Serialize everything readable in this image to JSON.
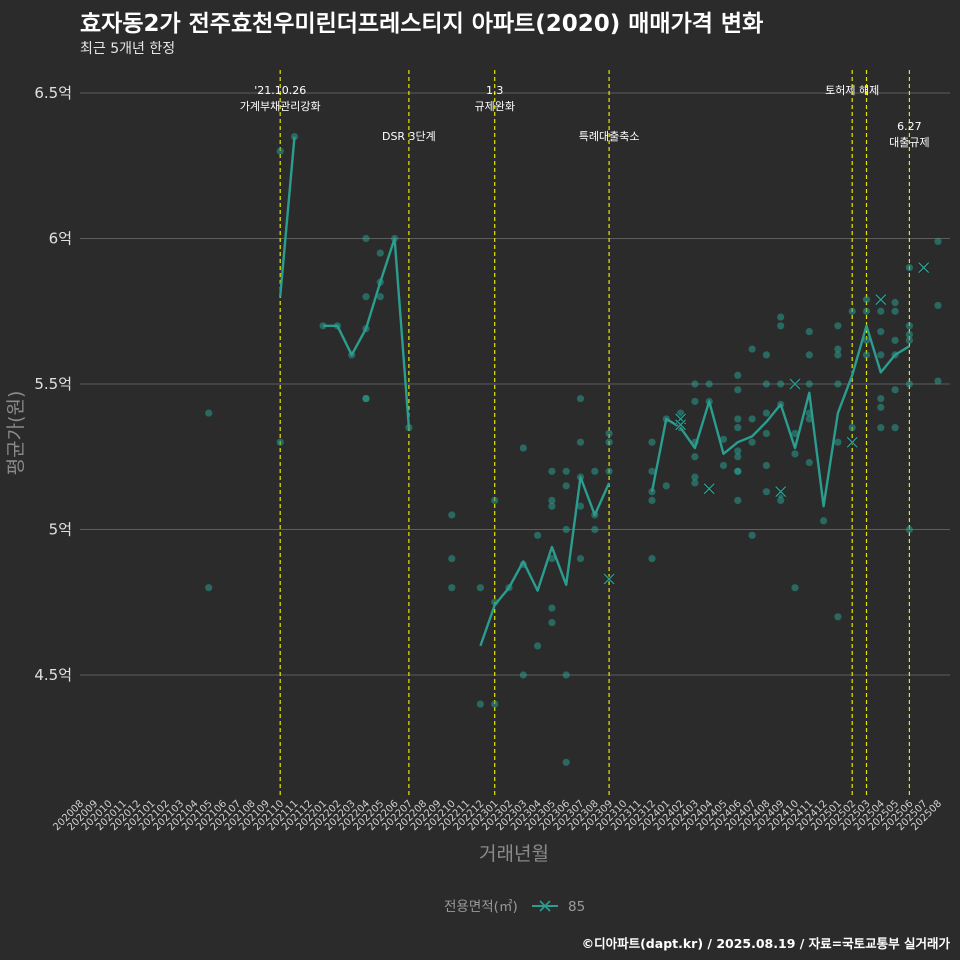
{
  "title": "효자동2가 전주효천우미린더프레스티지 아파트(2020) 매매가격 변화",
  "subtitle": "최근 5개년 한정",
  "caption": "©디아파트(dapt.kr) / 2025.08.19 / 자료=국토교통부 실거래가",
  "colors": {
    "background": "#2b2b2b",
    "series": "#2a9d8f",
    "event_line": "#e6e600",
    "grid": "#5e5e5e"
  },
  "chart_data": {
    "type": "line",
    "xlabel": "거래년월",
    "ylabel": "평균가(원)",
    "y_ticks": [
      {
        "value": 4.5,
        "label": "4.5억"
      },
      {
        "value": 5.0,
        "label": "5억"
      },
      {
        "value": 5.5,
        "label": "5.5억"
      },
      {
        "value": 6.0,
        "label": "6억"
      },
      {
        "value": 6.5,
        "label": "6.5억"
      }
    ],
    "ylim": [
      4.1,
      6.6
    ],
    "grid": true,
    "legend": {
      "title": "전용면적(㎡)",
      "position": "bottom",
      "items": [
        {
          "name": "85"
        }
      ]
    },
    "categories": [
      "202008",
      "202009",
      "202010",
      "202011",
      "202012",
      "202101",
      "202102",
      "202103",
      "202104",
      "202105",
      "202106",
      "202107",
      "202108",
      "202109",
      "202110",
      "202111",
      "202112",
      "202201",
      "202202",
      "202203",
      "202204",
      "202205",
      "202206",
      "202207",
      "202208",
      "202209",
      "202210",
      "202211",
      "202212",
      "202301",
      "202302",
      "202303",
      "202304",
      "202305",
      "202306",
      "202307",
      "202308",
      "202309",
      "202310",
      "202311",
      "202312",
      "202401",
      "202402",
      "202403",
      "202404",
      "202405",
      "202406",
      "202407",
      "202408",
      "202409",
      "202410",
      "202411",
      "202412",
      "202501",
      "202502",
      "202503",
      "202504",
      "202505",
      "202506",
      "202507",
      "202508"
    ],
    "series": [
      {
        "name": "85",
        "line": [
          {
            "x": "202110",
            "y": 5.8
          },
          {
            "x": "202111",
            "y": 6.35
          },
          {
            "x": "202201",
            "y": 5.7
          },
          {
            "x": "202202",
            "y": 5.7
          },
          {
            "x": "202203",
            "y": 5.6
          },
          {
            "x": "202204",
            "y": 5.69
          },
          {
            "x": "202205",
            "y": 5.85
          },
          {
            "x": "202206",
            "y": 6.0
          },
          {
            "x": "202207",
            "y": 5.35
          },
          {
            "x": "202212",
            "y": 4.6
          },
          {
            "x": "202301",
            "y": 4.74
          },
          {
            "x": "202302",
            "y": 4.8
          },
          {
            "x": "202303",
            "y": 4.89
          },
          {
            "x": "202304",
            "y": 4.79
          },
          {
            "x": "202305",
            "y": 4.94
          },
          {
            "x": "202306",
            "y": 4.81
          },
          {
            "x": "202307",
            "y": 5.18
          },
          {
            "x": "202308",
            "y": 5.05
          },
          {
            "x": "202309",
            "y": 5.16
          },
          {
            "x": "202312",
            "y": 5.13
          },
          {
            "x": "202401",
            "y": 5.38
          },
          {
            "x": "202402",
            "y": 5.35
          },
          {
            "x": "202403",
            "y": 5.28
          },
          {
            "x": "202404",
            "y": 5.44
          },
          {
            "x": "202405",
            "y": 5.26
          },
          {
            "x": "202406",
            "y": 5.3
          },
          {
            "x": "202407",
            "y": 5.32
          },
          {
            "x": "202408",
            "y": 5.37
          },
          {
            "x": "202409",
            "y": 5.43
          },
          {
            "x": "202410",
            "y": 5.28
          },
          {
            "x": "202411",
            "y": 5.47
          },
          {
            "x": "202412",
            "y": 5.08
          },
          {
            "x": "202501",
            "y": 5.4
          },
          {
            "x": "202502",
            "y": 5.53
          },
          {
            "x": "202503",
            "y": 5.7
          },
          {
            "x": "202504",
            "y": 5.54
          },
          {
            "x": "202505",
            "y": 5.6
          },
          {
            "x": "202506",
            "y": 5.63
          }
        ],
        "points": [
          {
            "x": "202105",
            "y": 5.4
          },
          {
            "x": "202105",
            "y": 4.8
          },
          {
            "x": "202110",
            "y": 6.3
          },
          {
            "x": "202110",
            "y": 5.3
          },
          {
            "x": "202111",
            "y": 6.35
          },
          {
            "x": "202201",
            "y": 5.7
          },
          {
            "x": "202202",
            "y": 5.7
          },
          {
            "x": "202203",
            "y": 5.6
          },
          {
            "x": "202204",
            "y": 6.0
          },
          {
            "x": "202204",
            "y": 5.8
          },
          {
            "x": "202204",
            "y": 5.69
          },
          {
            "x": "202204",
            "y": 5.45
          },
          {
            "x": "202204",
            "y": 5.45
          },
          {
            "x": "202205",
            "y": 5.95
          },
          {
            "x": "202205",
            "y": 5.85
          },
          {
            "x": "202205",
            "y": 5.8
          },
          {
            "x": "202206",
            "y": 6.0
          },
          {
            "x": "202207",
            "y": 5.35
          },
          {
            "x": "202210",
            "y": 5.05
          },
          {
            "x": "202210",
            "y": 4.9
          },
          {
            "x": "202210",
            "y": 4.8
          },
          {
            "x": "202212",
            "y": 4.8
          },
          {
            "x": "202212",
            "y": 4.4
          },
          {
            "x": "202301",
            "y": 5.1
          },
          {
            "x": "202301",
            "y": 4.75
          },
          {
            "x": "202301",
            "y": 4.4
          },
          {
            "x": "202302",
            "y": 4.8
          },
          {
            "x": "202303",
            "y": 5.28
          },
          {
            "x": "202303",
            "y": 4.88
          },
          {
            "x": "202303",
            "y": 4.5
          },
          {
            "x": "202304",
            "y": 4.98
          },
          {
            "x": "202304",
            "y": 4.6
          },
          {
            "x": "202305",
            "y": 5.2
          },
          {
            "x": "202305",
            "y": 5.1
          },
          {
            "x": "202305",
            "y": 5.08
          },
          {
            "x": "202305",
            "y": 4.9
          },
          {
            "x": "202305",
            "y": 4.73
          },
          {
            "x": "202305",
            "y": 4.68
          },
          {
            "x": "202306",
            "y": 5.2
          },
          {
            "x": "202306",
            "y": 5.15
          },
          {
            "x": "202306",
            "y": 5.0
          },
          {
            "x": "202306",
            "y": 4.5
          },
          {
            "x": "202306",
            "y": 4.2
          },
          {
            "x": "202307",
            "y": 5.45
          },
          {
            "x": "202307",
            "y": 5.3
          },
          {
            "x": "202307",
            "y": 5.18
          },
          {
            "x": "202307",
            "y": 5.08
          },
          {
            "x": "202307",
            "y": 4.9
          },
          {
            "x": "202308",
            "y": 5.2
          },
          {
            "x": "202308",
            "y": 5.05
          },
          {
            "x": "202308",
            "y": 5.0
          },
          {
            "x": "202309",
            "y": 5.33
          },
          {
            "x": "202309",
            "y": 5.3
          },
          {
            "x": "202309",
            "y": 5.2
          },
          {
            "x": "202312",
            "y": 5.3
          },
          {
            "x": "202312",
            "y": 5.2
          },
          {
            "x": "202312",
            "y": 5.13
          },
          {
            "x": "202312",
            "y": 5.1
          },
          {
            "x": "202312",
            "y": 4.9
          },
          {
            "x": "202401",
            "y": 5.38
          },
          {
            "x": "202401",
            "y": 5.15
          },
          {
            "x": "202402",
            "y": 5.4
          },
          {
            "x": "202402",
            "y": 5.35
          },
          {
            "x": "202403",
            "y": 5.5
          },
          {
            "x": "202403",
            "y": 5.44
          },
          {
            "x": "202403",
            "y": 5.3
          },
          {
            "x": "202403",
            "y": 5.25
          },
          {
            "x": "202403",
            "y": 5.18
          },
          {
            "x": "202403",
            "y": 5.16
          },
          {
            "x": "202404",
            "y": 5.5
          },
          {
            "x": "202404",
            "y": 5.44
          },
          {
            "x": "202405",
            "y": 5.31
          },
          {
            "x": "202405",
            "y": 5.22
          },
          {
            "x": "202406",
            "y": 5.53
          },
          {
            "x": "202406",
            "y": 5.48
          },
          {
            "x": "202406",
            "y": 5.38
          },
          {
            "x": "202406",
            "y": 5.35
          },
          {
            "x": "202406",
            "y": 5.27
          },
          {
            "x": "202406",
            "y": 5.25
          },
          {
            "x": "202406",
            "y": 5.2
          },
          {
            "x": "202406",
            "y": 5.2
          },
          {
            "x": "202406",
            "y": 5.1
          },
          {
            "x": "202407",
            "y": 5.62
          },
          {
            "x": "202407",
            "y": 5.38
          },
          {
            "x": "202407",
            "y": 5.3
          },
          {
            "x": "202407",
            "y": 4.98
          },
          {
            "x": "202408",
            "y": 5.6
          },
          {
            "x": "202408",
            "y": 5.5
          },
          {
            "x": "202408",
            "y": 5.4
          },
          {
            "x": "202408",
            "y": 5.33
          },
          {
            "x": "202408",
            "y": 5.22
          },
          {
            "x": "202408",
            "y": 5.13
          },
          {
            "x": "202409",
            "y": 5.73
          },
          {
            "x": "202409",
            "y": 5.7
          },
          {
            "x": "202409",
            "y": 5.5
          },
          {
            "x": "202409",
            "y": 5.43
          },
          {
            "x": "202409",
            "y": 5.12
          },
          {
            "x": "202409",
            "y": 5.1
          },
          {
            "x": "202410",
            "y": 5.33
          },
          {
            "x": "202410",
            "y": 5.26
          },
          {
            "x": "202410",
            "y": 4.8
          },
          {
            "x": "202411",
            "y": 5.68
          },
          {
            "x": "202411",
            "y": 5.6
          },
          {
            "x": "202411",
            "y": 5.5
          },
          {
            "x": "202411",
            "y": 5.4
          },
          {
            "x": "202411",
            "y": 5.38
          },
          {
            "x": "202411",
            "y": 5.23
          },
          {
            "x": "202412",
            "y": 5.03
          },
          {
            "x": "202501",
            "y": 5.7
          },
          {
            "x": "202501",
            "y": 5.62
          },
          {
            "x": "202501",
            "y": 5.6
          },
          {
            "x": "202501",
            "y": 5.5
          },
          {
            "x": "202501",
            "y": 5.3
          },
          {
            "x": "202501",
            "y": 4.7
          },
          {
            "x": "202502",
            "y": 5.75
          },
          {
            "x": "202502",
            "y": 5.35
          },
          {
            "x": "202503",
            "y": 5.79
          },
          {
            "x": "202503",
            "y": 5.75
          },
          {
            "x": "202503",
            "y": 5.65
          },
          {
            "x": "202503",
            "y": 5.6
          },
          {
            "x": "202504",
            "y": 5.75
          },
          {
            "x": "202504",
            "y": 5.68
          },
          {
            "x": "202504",
            "y": 5.6
          },
          {
            "x": "202504",
            "y": 5.45
          },
          {
            "x": "202504",
            "y": 5.42
          },
          {
            "x": "202504",
            "y": 5.35
          },
          {
            "x": "202505",
            "y": 5.78
          },
          {
            "x": "202505",
            "y": 5.75
          },
          {
            "x": "202505",
            "y": 5.65
          },
          {
            "x": "202505",
            "y": 5.6
          },
          {
            "x": "202505",
            "y": 5.48
          },
          {
            "x": "202505",
            "y": 5.35
          },
          {
            "x": "202506",
            "y": 5.9
          },
          {
            "x": "202506",
            "y": 5.7
          },
          {
            "x": "202506",
            "y": 5.67
          },
          {
            "x": "202506",
            "y": 5.65
          },
          {
            "x": "202506",
            "y": 5.5
          },
          {
            "x": "202506",
            "y": 5.0
          },
          {
            "x": "202508",
            "y": 5.99
          },
          {
            "x": "202508",
            "y": 5.77
          },
          {
            "x": "202508",
            "y": 5.51
          }
        ],
        "cross_points": [
          {
            "x": "202309",
            "y": 4.83
          },
          {
            "x": "202402",
            "y": 5.38
          },
          {
            "x": "202402",
            "y": 5.36
          },
          {
            "x": "202404",
            "y": 5.14
          },
          {
            "x": "202409",
            "y": 5.13
          },
          {
            "x": "202410",
            "y": 5.5
          },
          {
            "x": "202502",
            "y": 5.3
          },
          {
            "x": "202504",
            "y": 5.79
          },
          {
            "x": "202507",
            "y": 5.9
          }
        ]
      }
    ],
    "events": [
      {
        "x": "202110",
        "lines": [
          "'21.10.26",
          "가계부채관리강화"
        ],
        "tier": 1
      },
      {
        "x": "202207",
        "lines": [
          "DSR 3단계"
        ],
        "tier": 2
      },
      {
        "x": "202301",
        "lines": [
          "1.3",
          "규제완화"
        ],
        "tier": 1
      },
      {
        "x": "202309",
        "lines": [
          "특례대출축소"
        ],
        "tier": 2
      },
      {
        "x": "202502",
        "lines": [
          "토허제 해제"
        ],
        "tier": 1
      },
      {
        "x": "202503",
        "lines": [],
        "tier": 0
      },
      {
        "x": "202506",
        "lines": [
          "6.27",
          "대출규제"
        ],
        "tier": 3
      }
    ]
  }
}
